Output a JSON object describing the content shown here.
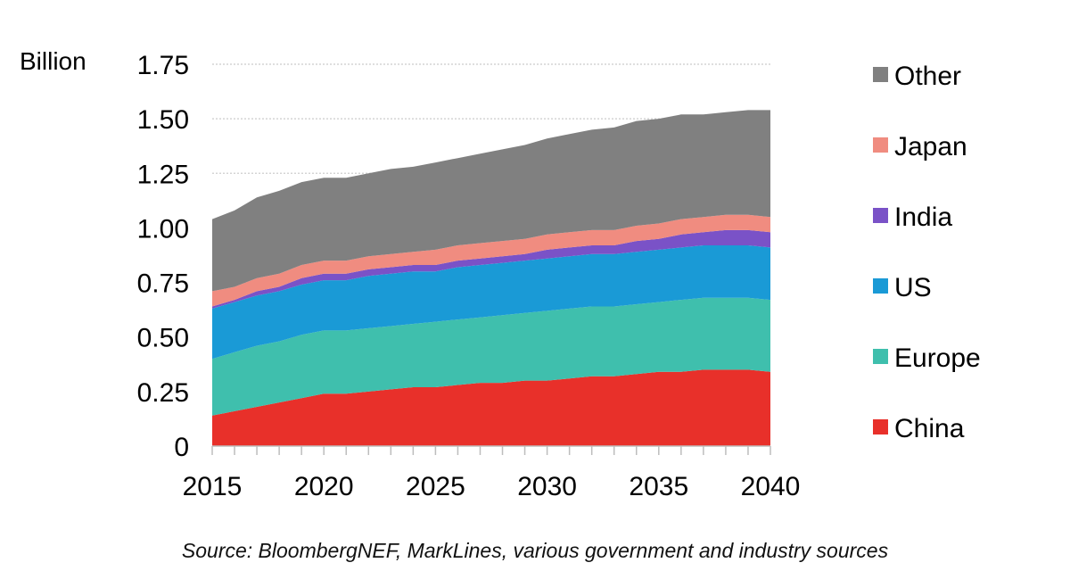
{
  "chart_data": {
    "type": "area",
    "stacked": true,
    "ylabel": "Billion",
    "ylim": [
      0,
      1.75
    ],
    "yticks": [
      "0",
      "0.25",
      "0.50",
      "0.75",
      "1.00",
      "1.25",
      "1.50",
      "1.75"
    ],
    "ytick_values": [
      0,
      0.25,
      0.5,
      0.75,
      1.0,
      1.25,
      1.5,
      1.75
    ],
    "xlim": [
      2015,
      2040
    ],
    "xticks": [
      "2015",
      "2020",
      "2025",
      "2030",
      "2035",
      "2040"
    ],
    "xtick_values": [
      2015,
      2020,
      2025,
      2030,
      2035,
      2040
    ],
    "x": [
      2015,
      2016,
      2017,
      2018,
      2019,
      2020,
      2021,
      2022,
      2023,
      2024,
      2025,
      2026,
      2027,
      2028,
      2029,
      2030,
      2031,
      2032,
      2033,
      2034,
      2035,
      2036,
      2037,
      2038,
      2039,
      2040
    ],
    "grid": "horizontal dotted",
    "legend_position": "right",
    "series": [
      {
        "name": "China",
        "color": "#e8302a",
        "values": [
          0.14,
          0.16,
          0.18,
          0.2,
          0.22,
          0.24,
          0.24,
          0.25,
          0.26,
          0.27,
          0.27,
          0.28,
          0.29,
          0.29,
          0.3,
          0.3,
          0.31,
          0.32,
          0.32,
          0.33,
          0.34,
          0.34,
          0.35,
          0.35,
          0.35,
          0.34
        ]
      },
      {
        "name": "Europe",
        "color": "#3fbfad",
        "values": [
          0.26,
          0.27,
          0.28,
          0.28,
          0.29,
          0.29,
          0.29,
          0.29,
          0.29,
          0.29,
          0.3,
          0.3,
          0.3,
          0.31,
          0.31,
          0.32,
          0.32,
          0.32,
          0.32,
          0.32,
          0.32,
          0.33,
          0.33,
          0.33,
          0.33,
          0.33
        ]
      },
      {
        "name": "US",
        "color": "#1a9ad6",
        "values": [
          0.23,
          0.23,
          0.23,
          0.23,
          0.23,
          0.23,
          0.23,
          0.24,
          0.24,
          0.24,
          0.23,
          0.24,
          0.24,
          0.24,
          0.24,
          0.24,
          0.24,
          0.24,
          0.24,
          0.24,
          0.24,
          0.24,
          0.24,
          0.24,
          0.24,
          0.24
        ]
      },
      {
        "name": "India",
        "color": "#7a52c7",
        "values": [
          0.01,
          0.01,
          0.02,
          0.02,
          0.03,
          0.03,
          0.03,
          0.03,
          0.03,
          0.03,
          0.03,
          0.03,
          0.03,
          0.03,
          0.03,
          0.04,
          0.04,
          0.04,
          0.04,
          0.05,
          0.05,
          0.06,
          0.06,
          0.07,
          0.07,
          0.07
        ]
      },
      {
        "name": "Japan",
        "color": "#f08c80",
        "values": [
          0.07,
          0.06,
          0.06,
          0.06,
          0.06,
          0.06,
          0.06,
          0.06,
          0.06,
          0.06,
          0.07,
          0.07,
          0.07,
          0.07,
          0.07,
          0.07,
          0.07,
          0.07,
          0.07,
          0.07,
          0.07,
          0.07,
          0.07,
          0.07,
          0.07,
          0.07
        ]
      },
      {
        "name": "Other",
        "color": "#808080",
        "values": [
          0.33,
          0.35,
          0.37,
          0.38,
          0.38,
          0.38,
          0.38,
          0.38,
          0.39,
          0.39,
          0.4,
          0.4,
          0.41,
          0.42,
          0.43,
          0.44,
          0.45,
          0.46,
          0.47,
          0.48,
          0.48,
          0.48,
          0.47,
          0.47,
          0.48,
          0.49
        ]
      }
    ],
    "legend_order": [
      "Other",
      "Japan",
      "India",
      "US",
      "Europe",
      "China"
    ]
  },
  "source_note": "Source: BloombergNEF, MarkLines, various government and industry sources"
}
